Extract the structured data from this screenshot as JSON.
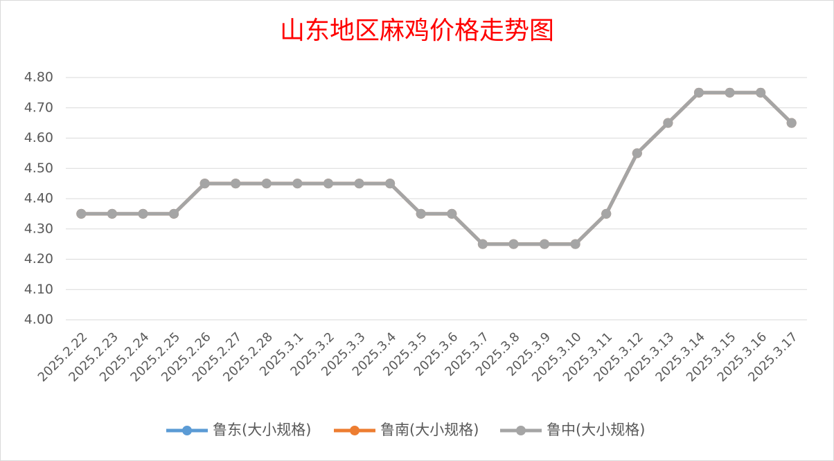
{
  "chart_data": {
    "type": "line",
    "title": "山东地区麻鸡价格走势图",
    "categories": [
      "2025.2.22",
      "2025.2.23",
      "2025.2.24",
      "2025.2.25",
      "2025.2.26",
      "2025.2.27",
      "2025.2.28",
      "2025.3.1",
      "2025.3.2",
      "2025.3.3",
      "2025.3.4",
      "2025.3.5",
      "2025.3.6",
      "2025.3.7",
      "2025.3.8",
      "2025.3.9",
      "2025.3.10",
      "2025.3.11",
      "2025.3.12",
      "2025.3.13",
      "2025.3.14",
      "2025.3.15",
      "2025.3.16",
      "2025.3.17"
    ],
    "series": [
      {
        "name": "鲁东(大小规格)",
        "color": "#5b9bd5",
        "values": [
          4.35,
          4.35,
          4.35,
          4.35,
          4.45,
          4.45,
          4.45,
          4.45,
          4.45,
          4.45,
          4.45,
          4.35,
          4.35,
          4.25,
          4.25,
          4.25,
          4.25,
          4.35,
          4.55,
          4.65,
          4.75,
          4.75,
          4.75,
          4.65
        ]
      },
      {
        "name": "鲁南(大小规格)",
        "color": "#ed7d31",
        "values": [
          4.35,
          4.35,
          4.35,
          4.35,
          4.45,
          4.45,
          4.45,
          4.45,
          4.45,
          4.45,
          4.45,
          4.35,
          4.35,
          4.25,
          4.25,
          4.25,
          4.25,
          4.35,
          4.55,
          4.65,
          4.75,
          4.75,
          4.75,
          4.65
        ]
      },
      {
        "name": "鲁中(大小规格)",
        "color": "#a5a5a5",
        "values": [
          4.35,
          4.35,
          4.35,
          4.35,
          4.45,
          4.45,
          4.45,
          4.45,
          4.45,
          4.45,
          4.45,
          4.35,
          4.35,
          4.25,
          4.25,
          4.25,
          4.25,
          4.35,
          4.55,
          4.65,
          4.75,
          4.75,
          4.75,
          4.65
        ]
      }
    ],
    "ylim": [
      4.0,
      4.8
    ],
    "yticks": [
      {
        "value": 4.0,
        "label": "4.00"
      },
      {
        "value": 4.1,
        "label": "4.10"
      },
      {
        "value": 4.2,
        "label": "4.20"
      },
      {
        "value": 4.3,
        "label": "4.30"
      },
      {
        "value": 4.4,
        "label": "4.40"
      },
      {
        "value": 4.5,
        "label": "4.50"
      },
      {
        "value": 4.6,
        "label": "4.60"
      },
      {
        "value": 4.7,
        "label": "4.70"
      },
      {
        "value": 4.8,
        "label": "4.80"
      }
    ],
    "grid": true,
    "legend": "bottom"
  }
}
